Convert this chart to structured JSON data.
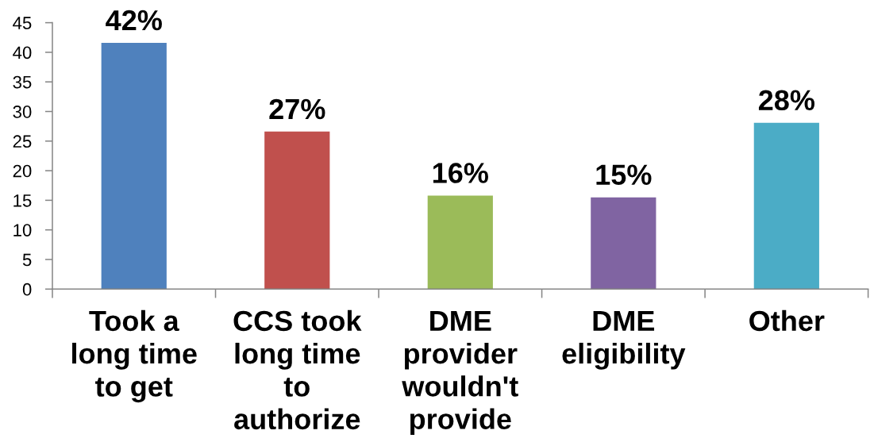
{
  "chart_data": {
    "type": "bar",
    "categories": [
      "Took a\nlong time\nto get",
      "CCS took\nlong time\nto\nauthorize",
      "DME\nprovider\nwouldn't\nprovide",
      "DME\neligibility",
      "Other"
    ],
    "values": [
      41.6,
      26.6,
      15.8,
      15.5,
      28.1
    ],
    "colors": [
      "#4f81bd",
      "#c0504d",
      "#9bbb59",
      "#8064a2",
      "#4bacc6"
    ],
    "value_labels": [
      "42%",
      "27%",
      "16%",
      "15%",
      "28%"
    ],
    "ylim": [
      0,
      45
    ],
    "yticks": [
      0,
      5,
      10,
      15,
      20,
      25,
      30,
      35,
      40,
      45
    ]
  }
}
